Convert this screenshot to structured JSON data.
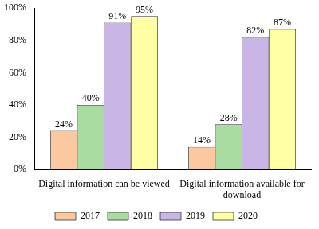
{
  "chart_data": {
    "type": "bar",
    "categories": [
      "Digital information can be viewed",
      "Digital information available for download"
    ],
    "series": [
      {
        "name": "2017",
        "color": "#fbc8a1",
        "values": [
          24,
          14
        ],
        "value_labels": [
          "24%",
          "14%"
        ]
      },
      {
        "name": "2018",
        "color": "#a9dba2",
        "values": [
          40,
          28
        ],
        "value_labels": [
          "40%",
          "28%"
        ]
      },
      {
        "name": "2019",
        "color": "#c9b6e6",
        "values": [
          91,
          82
        ],
        "value_labels": [
          "91%",
          "82%"
        ]
      },
      {
        "name": "2020",
        "color": "#ffffa6",
        "values": [
          95,
          87
        ],
        "value_labels": [
          "95%",
          "87%"
        ]
      }
    ],
    "ylim": [
      0,
      100
    ],
    "yticks": [
      {
        "value": 0,
        "label": "0%"
      },
      {
        "value": 20,
        "label": "20%"
      },
      {
        "value": 40,
        "label": "40%"
      },
      {
        "value": 60,
        "label": "60%"
      },
      {
        "value": 80,
        "label": "80%"
      },
      {
        "value": 100,
        "label": "100%"
      }
    ],
    "grid": false,
    "legend": "bottom",
    "data_labels": true
  }
}
